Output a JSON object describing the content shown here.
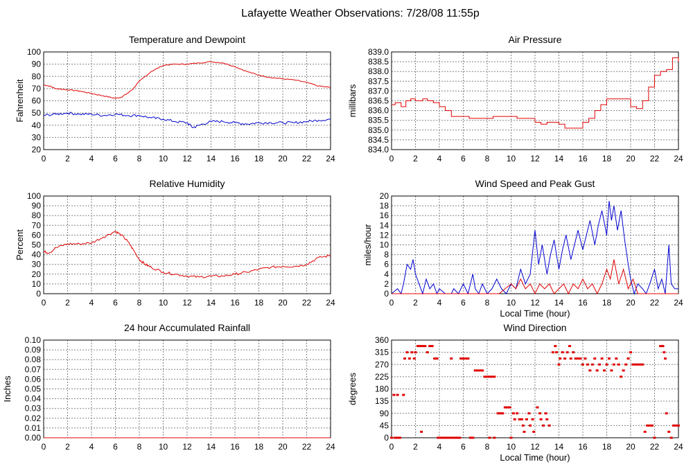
{
  "page_title": "Lafayette Weather Observations: 7/28/08 11:55p",
  "colors": {
    "red": "#e00000",
    "blue": "#0000d0",
    "grid": "#808080"
  },
  "chart_data": [
    {
      "id": "temp",
      "type": "line",
      "title": "Temperature and Dewpoint",
      "xlabel": "",
      "ylabel": "Fahrenheit",
      "xlim": [
        0,
        24
      ],
      "ylim": [
        20,
        100
      ],
      "x_ticks": [
        "0",
        "2",
        "4",
        "6",
        "8",
        "10",
        "12",
        "14",
        "16",
        "18",
        "20",
        "22",
        "24"
      ],
      "y_ticks": [
        "20",
        "30",
        "40",
        "50",
        "60",
        "70",
        "80",
        "90",
        "100"
      ],
      "series": [
        {
          "color": "#e00000",
          "noise": 0.4,
          "x": [
            0,
            0.5,
            1,
            2,
            3,
            4,
            5,
            6,
            6.5,
            7,
            7.5,
            8,
            9,
            10,
            11,
            12,
            13,
            14,
            15,
            16,
            17,
            18,
            19,
            20,
            21,
            22,
            23,
            24
          ],
          "y": [
            73,
            72,
            70,
            69,
            68,
            66,
            64,
            62,
            63,
            66,
            70,
            76,
            84,
            89,
            90,
            90,
            91,
            92,
            91,
            88,
            84,
            81,
            79,
            78,
            77,
            75,
            72,
            71
          ]
        },
        {
          "color": "#0000d0",
          "noise": 1.0,
          "x": [
            0,
            1,
            2,
            3,
            4,
            5,
            6,
            7,
            8,
            9,
            10,
            11,
            12,
            12.5,
            13,
            14,
            15,
            16,
            17,
            18,
            19,
            20,
            21,
            22,
            23,
            24
          ],
          "y": [
            48,
            49,
            50,
            49,
            49,
            48,
            49,
            48,
            48,
            46,
            45,
            43,
            42,
            38,
            40,
            43,
            43,
            42,
            41,
            42,
            42,
            42,
            42,
            43,
            44,
            45
          ]
        }
      ]
    },
    {
      "id": "pressure",
      "type": "line",
      "title": "Air Pressure",
      "xlabel": "",
      "ylabel": "millibars",
      "xlim": [
        0,
        24
      ],
      "ylim": [
        834.0,
        839.0
      ],
      "x_ticks": [
        "0",
        "2",
        "4",
        "6",
        "8",
        "10",
        "12",
        "14",
        "16",
        "18",
        "20",
        "22",
        "24"
      ],
      "y_ticks": [
        "834.0",
        "834.5",
        "835.0",
        "835.5",
        "836.0",
        "836.5",
        "837.0",
        "837.5",
        "838.0",
        "838.5",
        "839.0"
      ],
      "series": [
        {
          "color": "#e00000",
          "noise": 0,
          "step": true,
          "x": [
            0,
            0.3,
            0.8,
            1.2,
            1.6,
            2.0,
            2.6,
            3.0,
            3.5,
            4.0,
            4.5,
            5.0,
            6.5,
            8.5,
            10.5,
            12,
            12.5,
            13,
            14,
            14.5,
            15.5,
            16,
            16.5,
            17,
            17.5,
            18,
            19.5,
            20,
            20.5,
            21,
            21.5,
            22,
            22.5,
            23,
            23.5,
            24
          ],
          "y": [
            836.3,
            836.4,
            836.2,
            836.5,
            836.6,
            836.5,
            836.6,
            836.5,
            836.4,
            836.2,
            836.0,
            835.7,
            835.6,
            835.7,
            835.6,
            835.4,
            835.3,
            835.4,
            835.3,
            835.1,
            835.1,
            835.4,
            835.6,
            836.0,
            836.3,
            836.6,
            836.6,
            836.2,
            836.1,
            836.5,
            837.2,
            837.8,
            838.0,
            838.1,
            838.7,
            838.5
          ]
        }
      ]
    },
    {
      "id": "humidity",
      "type": "line",
      "title": "Relative Humidity",
      "xlabel": "",
      "ylabel": "Percent",
      "xlim": [
        0,
        24
      ],
      "ylim": [
        0,
        100
      ],
      "x_ticks": [
        "0",
        "2",
        "4",
        "6",
        "8",
        "10",
        "12",
        "14",
        "16",
        "18",
        "20",
        "22",
        "24"
      ],
      "y_ticks": [
        "0",
        "10",
        "20",
        "30",
        "40",
        "50",
        "60",
        "70",
        "80",
        "90",
        "100"
      ],
      "series": [
        {
          "color": "#e00000",
          "noise": 1.2,
          "x": [
            0,
            0.5,
            1,
            2,
            3,
            4,
            5,
            6,
            6.5,
            7,
            7.5,
            8,
            8.5,
            9,
            10,
            11,
            12,
            13,
            14,
            15,
            16,
            17,
            18,
            19,
            20,
            21,
            22,
            23,
            24
          ],
          "y": [
            43,
            42,
            47,
            51,
            51,
            52,
            58,
            64,
            60,
            54,
            45,
            35,
            30,
            27,
            22,
            20,
            18,
            17,
            18,
            18,
            20,
            22,
            25,
            27,
            28,
            28,
            30,
            37,
            39
          ]
        }
      ]
    },
    {
      "id": "wind",
      "type": "line",
      "title": "Wind Speed and Peak Gust",
      "xlabel": "Local Time (hour)",
      "ylabel": "miles/hour",
      "xlim": [
        0,
        24
      ],
      "ylim": [
        0,
        20
      ],
      "x_ticks": [
        "0",
        "2",
        "4",
        "6",
        "8",
        "10",
        "12",
        "14",
        "16",
        "18",
        "20",
        "22",
        "24"
      ],
      "y_ticks": [
        "0",
        "2",
        "4",
        "6",
        "8",
        "10",
        "12",
        "14",
        "16",
        "18",
        "20"
      ],
      "series": [
        {
          "color": "#0000d0",
          "noise": 0,
          "x": [
            0,
            0.5,
            0.8,
            1.0,
            1.3,
            1.6,
            1.8,
            2.0,
            2.3,
            2.6,
            2.9,
            3.2,
            3.5,
            3.8,
            4.0,
            4.5,
            5.0,
            5.2,
            5.6,
            6.0,
            6.4,
            6.8,
            7.0,
            7.3,
            7.6,
            8.0,
            8.4,
            8.8,
            9.2,
            9.6,
            10.0,
            10.4,
            10.8,
            11.2,
            11.6,
            12.0,
            12.3,
            12.6,
            13.0,
            13.3,
            13.6,
            14.0,
            14.3,
            14.6,
            15.0,
            15.3,
            15.6,
            16.0,
            16.3,
            16.6,
            17.0,
            17.3,
            17.6,
            18.0,
            18.2,
            18.4,
            18.6,
            18.9,
            19.2,
            19.5,
            19.8,
            20.0,
            20.3,
            20.6,
            21.0,
            21.3,
            21.6,
            22.0,
            22.3,
            22.6,
            22.9,
            23.2,
            23.4,
            23.7,
            24
          ],
          "y": [
            0,
            1,
            0,
            2,
            6,
            5,
            7,
            4,
            2,
            0,
            3,
            1,
            2,
            0,
            1,
            0,
            0,
            1,
            0,
            2,
            0,
            4,
            1,
            0,
            2,
            0,
            1,
            3,
            1,
            0,
            2,
            1,
            5,
            2,
            4,
            13,
            6,
            10,
            4,
            8,
            11,
            5,
            9,
            12,
            7,
            10,
            13,
            9,
            12,
            15,
            10,
            14,
            17,
            12,
            19,
            15,
            18,
            13,
            17,
            11,
            6,
            3,
            0,
            2,
            1,
            0,
            2,
            5,
            1,
            3,
            0,
            10,
            2,
            1,
            1
          ]
        },
        {
          "color": "#e00000",
          "noise": 0,
          "x": [
            0,
            0.5,
            1,
            2,
            3,
            4,
            5,
            6,
            7,
            8,
            9,
            9.5,
            10,
            10.4,
            10.8,
            11.2,
            11.6,
            12,
            12.4,
            12.8,
            13.2,
            13.6,
            14,
            14.4,
            14.8,
            15.2,
            15.6,
            16,
            16.4,
            16.8,
            17.2,
            17.6,
            18,
            18.3,
            18.6,
            19,
            19.4,
            19.8,
            20.2,
            20.6,
            21,
            22,
            23,
            24
          ],
          "y": [
            0,
            0,
            0,
            0,
            0,
            0,
            0,
            0,
            0,
            0,
            0,
            1,
            2,
            1,
            3,
            1,
            2,
            0,
            2,
            1,
            2,
            0,
            1,
            2,
            0,
            2,
            1,
            3,
            1,
            2,
            0,
            2,
            5,
            3,
            7,
            2,
            5,
            1,
            3,
            0,
            0,
            0,
            0,
            0
          ]
        }
      ]
    },
    {
      "id": "rain",
      "type": "line",
      "title": "24 hour Accumulated Rainfall",
      "xlabel": "",
      "ylabel": "Inches",
      "xlim": [
        0,
        24
      ],
      "ylim": [
        0,
        0.1
      ],
      "x_ticks": [
        "0",
        "2",
        "4",
        "6",
        "8",
        "10",
        "12",
        "14",
        "16",
        "18",
        "20",
        "22",
        "24"
      ],
      "y_ticks": [
        "0.00",
        "0.01",
        "0.02",
        "0.03",
        "0.04",
        "0.05",
        "0.06",
        "0.07",
        "0.08",
        "0.09",
        "0.10"
      ],
      "series": [
        {
          "color": "#e00000",
          "noise": 0,
          "x": [
            0,
            24
          ],
          "y": [
            0,
            0
          ]
        }
      ]
    },
    {
      "id": "direction",
      "type": "scatter",
      "title": "Wind Direction",
      "xlabel": "Local Time (hour)",
      "ylabel": "degrees",
      "xlim": [
        0,
        24
      ],
      "ylim": [
        0,
        360
      ],
      "x_ticks": [
        "0",
        "2",
        "4",
        "6",
        "8",
        "10",
        "12",
        "14",
        "16",
        "18",
        "20",
        "22",
        "24"
      ],
      "y_ticks": [
        "0",
        "45",
        "90",
        "135",
        "180",
        "225",
        "270",
        "315",
        "360"
      ],
      "points": [
        [
          0,
          0
        ],
        [
          0.3,
          0
        ],
        [
          0.5,
          0
        ],
        [
          0.7,
          0
        ],
        [
          0.2,
          158
        ],
        [
          0.5,
          158
        ],
        [
          1.0,
          158
        ],
        [
          1.1,
          292
        ],
        [
          1.3,
          315
        ],
        [
          1.5,
          292
        ],
        [
          1.7,
          315
        ],
        [
          1.9,
          292
        ],
        [
          2.0,
          315
        ],
        [
          2.2,
          338
        ],
        [
          2.4,
          338
        ],
        [
          2.6,
          338
        ],
        [
          2.8,
          338
        ],
        [
          2.5,
          22
        ],
        [
          3.0,
          315
        ],
        [
          3.2,
          338
        ],
        [
          3.4,
          338
        ],
        [
          3.6,
          292
        ],
        [
          3.8,
          292
        ],
        [
          3.9,
          0
        ],
        [
          4.1,
          0
        ],
        [
          4.3,
          0
        ],
        [
          4.5,
          0
        ],
        [
          4.7,
          0
        ],
        [
          4.9,
          0
        ],
        [
          5.1,
          0
        ],
        [
          5.3,
          0
        ],
        [
          5.5,
          0
        ],
        [
          5.7,
          0
        ],
        [
          5.0,
          292
        ],
        [
          5.8,
          292
        ],
        [
          6.0,
          292
        ],
        [
          6.2,
          292
        ],
        [
          6.4,
          292
        ],
        [
          6.6,
          0
        ],
        [
          6.8,
          0
        ],
        [
          7.0,
          248
        ],
        [
          7.2,
          248
        ],
        [
          7.4,
          248
        ],
        [
          7.6,
          248
        ],
        [
          7.8,
          225
        ],
        [
          8.0,
          225
        ],
        [
          8.2,
          225
        ],
        [
          8.4,
          225
        ],
        [
          8.6,
          225
        ],
        [
          8.2,
          0
        ],
        [
          8.6,
          0
        ],
        [
          8.9,
          90
        ],
        [
          9.1,
          90
        ],
        [
          9.3,
          90
        ],
        [
          9.5,
          112
        ],
        [
          9.7,
          112
        ],
        [
          9.9,
          112
        ],
        [
          10.0,
          0
        ],
        [
          10.2,
          90
        ],
        [
          10.3,
          68
        ],
        [
          10.5,
          90
        ],
        [
          10.7,
          68
        ],
        [
          10.9,
          68
        ],
        [
          11.0,
          45
        ],
        [
          11.1,
          22
        ],
        [
          11.3,
          68
        ],
        [
          11.5,
          90
        ],
        [
          11.6,
          45
        ],
        [
          11.8,
          68
        ],
        [
          11.9,
          22
        ],
        [
          12.2,
          112
        ],
        [
          12.4,
          90
        ],
        [
          12.5,
          68
        ],
        [
          12.7,
          45
        ],
        [
          12.9,
          90
        ],
        [
          13.0,
          68
        ],
        [
          13.2,
          45
        ],
        [
          13.5,
          315
        ],
        [
          13.7,
          338
        ],
        [
          13.8,
          315
        ],
        [
          14.0,
          270
        ],
        [
          14.1,
          292
        ],
        [
          14.3,
          315
        ],
        [
          14.5,
          292
        ],
        [
          14.7,
          315
        ],
        [
          14.9,
          338
        ],
        [
          15.0,
          292
        ],
        [
          15.2,
          315
        ],
        [
          15.4,
          292
        ],
        [
          15.6,
          292
        ],
        [
          15.8,
          292
        ],
        [
          16.0,
          270
        ],
        [
          16.2,
          292
        ],
        [
          16.4,
          270
        ],
        [
          16.6,
          248
        ],
        [
          16.8,
          270
        ],
        [
          17.0,
          292
        ],
        [
          17.2,
          248
        ],
        [
          17.4,
          270
        ],
        [
          17.6,
          292
        ],
        [
          17.8,
          248
        ],
        [
          18.0,
          270
        ],
        [
          18.2,
          292
        ],
        [
          18.4,
          248
        ],
        [
          18.6,
          270
        ],
        [
          18.8,
          292
        ],
        [
          19.0,
          270
        ],
        [
          19.2,
          225
        ],
        [
          19.4,
          248
        ],
        [
          19.6,
          270
        ],
        [
          19.8,
          292
        ],
        [
          20.0,
          315
        ],
        [
          20.2,
          270
        ],
        [
          20.4,
          270
        ],
        [
          20.6,
          270
        ],
        [
          20.8,
          270
        ],
        [
          21.0,
          270
        ],
        [
          21.2,
          22
        ],
        [
          21.4,
          45
        ],
        [
          21.6,
          45
        ],
        [
          21.8,
          45
        ],
        [
          22.0,
          0
        ],
        [
          22.5,
          338
        ],
        [
          22.7,
          338
        ],
        [
          22.8,
          315
        ],
        [
          22.9,
          292
        ],
        [
          23.0,
          90
        ],
        [
          23.2,
          22
        ],
        [
          23.4,
          0
        ],
        [
          23.6,
          45
        ],
        [
          23.8,
          45
        ],
        [
          24.0,
          45
        ]
      ],
      "color": "#e00000"
    }
  ]
}
